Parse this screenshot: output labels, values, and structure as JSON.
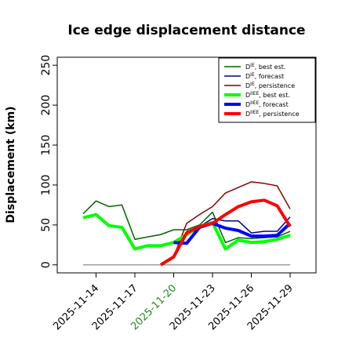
{
  "chart_data": {
    "type": "line",
    "title": "Ice edge displacement distance",
    "y_label": "Displacement (km)",
    "x": [
      "2025-11-13",
      "2025-11-14",
      "2025-11-15",
      "2025-11-16",
      "2025-11-17",
      "2025-11-18",
      "2025-11-19",
      "2025-11-20",
      "2025-11-21",
      "2025-11-22",
      "2025-11-23",
      "2025-11-24",
      "2025-11-25",
      "2025-11-26",
      "2025-11-27",
      "2025-11-28",
      "2025-11-29"
    ],
    "xlim": [
      "2025-11-11",
      "2025-12-01"
    ],
    "xticks": [
      "2025-11-14",
      "2025-11-17",
      "2025-11-20",
      "2025-11-23",
      "2025-11-26",
      "2025-11-29"
    ],
    "xtick_colors": [
      "#000000",
      "#000000",
      "#228b22",
      "#000000",
      "#000000",
      "#000000"
    ],
    "ylim": [
      -10,
      260
    ],
    "yticks": [
      0,
      50,
      100,
      150,
      200,
      250
    ],
    "reference_line": {
      "value": 0,
      "color": "#808080"
    },
    "legend": "upper right",
    "series": [
      {
        "name": "DIE, best est.",
        "color": "#006400",
        "width": 1.5,
        "values": [
          64,
          80,
          73,
          75,
          32,
          35,
          38,
          44,
          44,
          50,
          66,
          28,
          34,
          33,
          34,
          35,
          42
        ]
      },
      {
        "name": "DIE, forecast",
        "color": "#00008b",
        "width": 1.5,
        "values": [
          null,
          null,
          null,
          null,
          null,
          null,
          null,
          null,
          42,
          48,
          58,
          55,
          55,
          40,
          42,
          42,
          60
        ]
      },
      {
        "name": "DIE, persistence",
        "color": "#8b0000",
        "width": 1.5,
        "values": [
          null,
          null,
          null,
          null,
          null,
          null,
          0,
          10,
          52,
          63,
          73,
          90,
          97,
          104,
          102,
          99,
          70
        ]
      },
      {
        "name": "DIIEE, best est.",
        "color": "#00ff00",
        "width": 4,
        "values": [
          59,
          63,
          49,
          47,
          20,
          24,
          24,
          28,
          38,
          48,
          53,
          20,
          31,
          28,
          29,
          32,
          37
        ]
      },
      {
        "name": "DIIEE, forecast",
        "color": "#0000ff",
        "width": 4,
        "values": [
          null,
          null,
          null,
          null,
          null,
          null,
          null,
          28,
          27,
          47,
          52,
          46,
          43,
          36,
          36,
          37,
          52
        ]
      },
      {
        "name": "DIIEE, persistence",
        "color": "#ff0000",
        "width": 4,
        "values": [
          null,
          null,
          null,
          null,
          null,
          null,
          0,
          10,
          40,
          48,
          52,
          63,
          73,
          79,
          81,
          74,
          48
        ]
      }
    ]
  }
}
